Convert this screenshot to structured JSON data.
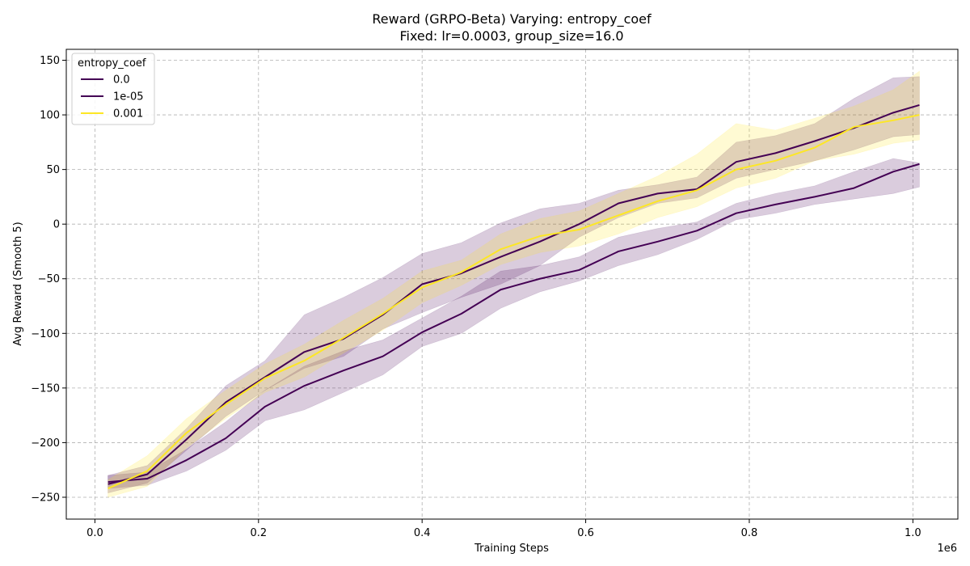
{
  "chart_data": {
    "type": "line",
    "title": "Reward (GRPO-Beta) Varying: entropy_coef",
    "subtitle": "Fixed: lr=0.0003, group_size=16.0",
    "xlabel": "Training Steps",
    "ylabel": "Avg Reward (Smooth 5)",
    "x_offset_label": "1e6",
    "xlim": [
      -0.035,
      1.055
    ],
    "ylim": [
      -270,
      160
    ],
    "x_ticks": [
      0.0,
      0.2,
      0.4,
      0.6,
      0.8,
      1.0
    ],
    "x_tick_labels": [
      "0.0",
      "0.2",
      "0.4",
      "0.6",
      "0.8",
      "1.0"
    ],
    "y_ticks": [
      -250,
      -200,
      -150,
      -100,
      -50,
      0,
      50,
      100,
      150
    ],
    "y_tick_labels": [
      "−250",
      "−200",
      "−150",
      "−100",
      "−50",
      "0",
      "50",
      "100",
      "150"
    ],
    "grid": true,
    "legend": {
      "title": "entropy_coef",
      "placement": "top-left"
    },
    "x": [
      0.016,
      0.064,
      0.112,
      0.16,
      0.208,
      0.256,
      0.304,
      0.352,
      0.4,
      0.448,
      0.496,
      0.544,
      0.592,
      0.64,
      0.688,
      0.736,
      0.784,
      0.832,
      0.88,
      0.928,
      0.976,
      1.008
    ],
    "series": [
      {
        "name": "0.0",
        "color": "#440154",
        "fill_opacity": 0.2,
        "values": [
          -238,
          -229,
          -197,
          -163,
          -140,
          -117,
          -105,
          -83,
          -55,
          -45,
          -30,
          -16,
          0,
          19,
          28,
          32,
          57,
          65,
          76,
          88,
          102,
          109
        ],
        "lower": [
          -246,
          -237,
          -207,
          -176,
          -152,
          -132,
          -121,
          -96,
          -81,
          -67,
          -55,
          -38,
          -12,
          6,
          19,
          24,
          42,
          50,
          58,
          68,
          80,
          82
        ],
        "upper": [
          -230,
          -221,
          -187,
          -148,
          -125,
          -83,
          -67,
          -49,
          -27,
          -17,
          1,
          14,
          19,
          31,
          36,
          43,
          75,
          81,
          92,
          115,
          134,
          135
        ]
      },
      {
        "name": "1e-05",
        "color": "#440154",
        "fill_opacity": 0.2,
        "values": [
          -236,
          -233,
          -216,
          -196,
          -167,
          -148,
          -134,
          -121,
          -99,
          -82,
          -60,
          -50,
          -42,
          -25,
          -16,
          -6,
          10,
          18,
          25,
          33,
          48,
          55
        ],
        "lower": [
          -242,
          -239,
          -226,
          -207,
          -180,
          -170,
          -154,
          -138,
          -112,
          -100,
          -77,
          -62,
          -52,
          -38,
          -28,
          -14,
          4,
          10,
          18,
          23,
          28,
          34
        ],
        "upper": [
          -230,
          -227,
          -206,
          -181,
          -152,
          -130,
          -116,
          -106,
          -86,
          -66,
          -43,
          -38,
          -30,
          -12,
          -4,
          2,
          19,
          28,
          35,
          48,
          60,
          56
        ]
      },
      {
        "name": "0.001",
        "color": "#fde725",
        "fill_opacity": 0.2,
        "values": [
          -242,
          -226,
          -191,
          -165,
          -141,
          -125,
          -104,
          -82,
          -58,
          -44,
          -23,
          -11,
          -5,
          8,
          21,
          31,
          50,
          58,
          70,
          89,
          95,
          100
        ],
        "lower": [
          -250,
          -240,
          -205,
          -178,
          -154,
          -140,
          -118,
          -97,
          -72,
          -56,
          -37,
          -26,
          -20,
          -9,
          6,
          16,
          33,
          42,
          58,
          64,
          74,
          77
        ],
        "upper": [
          -234,
          -212,
          -178,
          -152,
          -128,
          -110,
          -88,
          -68,
          -43,
          -33,
          -9,
          5,
          12,
          28,
          44,
          64,
          92,
          86,
          97,
          108,
          123,
          140
        ]
      }
    ]
  }
}
